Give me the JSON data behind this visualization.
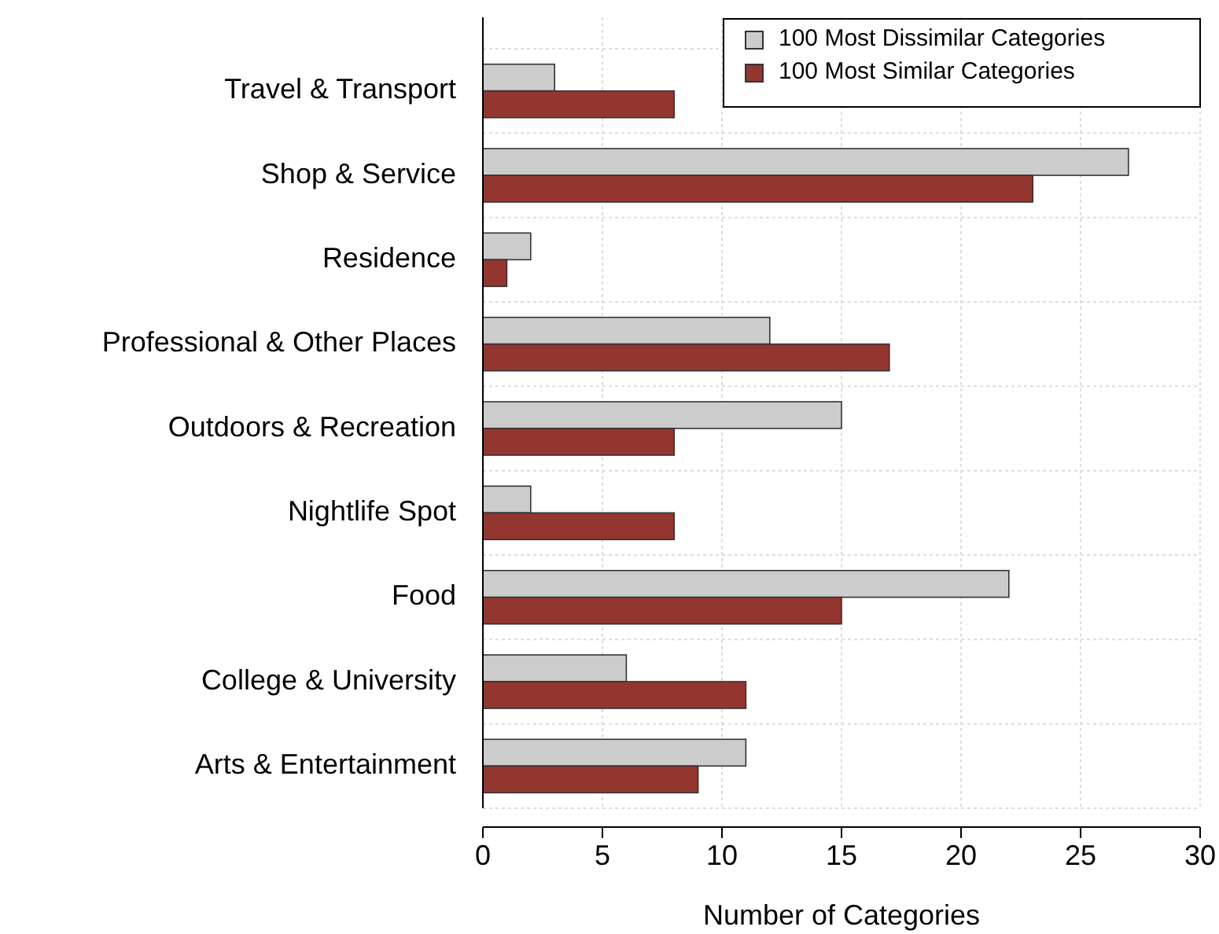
{
  "chart_data": {
    "type": "bar",
    "orientation": "horizontal",
    "xlabel": "Number of Categories",
    "categories": [
      "Travel & Transport",
      "Shop & Service",
      "Residence",
      "Professional & Other Places",
      "Outdoors & Recreation",
      "Nightlife Spot",
      "Food",
      "College & University",
      "Arts & Entertainment"
    ],
    "series": [
      {
        "name": "100 Most Dissimilar Categories",
        "color": "#cccccc",
        "values": [
          3,
          27,
          2,
          12,
          15,
          2,
          22,
          6,
          11
        ]
      },
      {
        "name": "100 Most Similar Categories",
        "color": "#943630",
        "values": [
          8,
          23,
          1,
          17,
          8,
          8,
          15,
          11,
          9
        ]
      }
    ],
    "xlim": [
      0,
      30
    ],
    "xticks": [
      0,
      5,
      10,
      15,
      20,
      25,
      30
    ],
    "grid": true,
    "legend": "top right"
  }
}
